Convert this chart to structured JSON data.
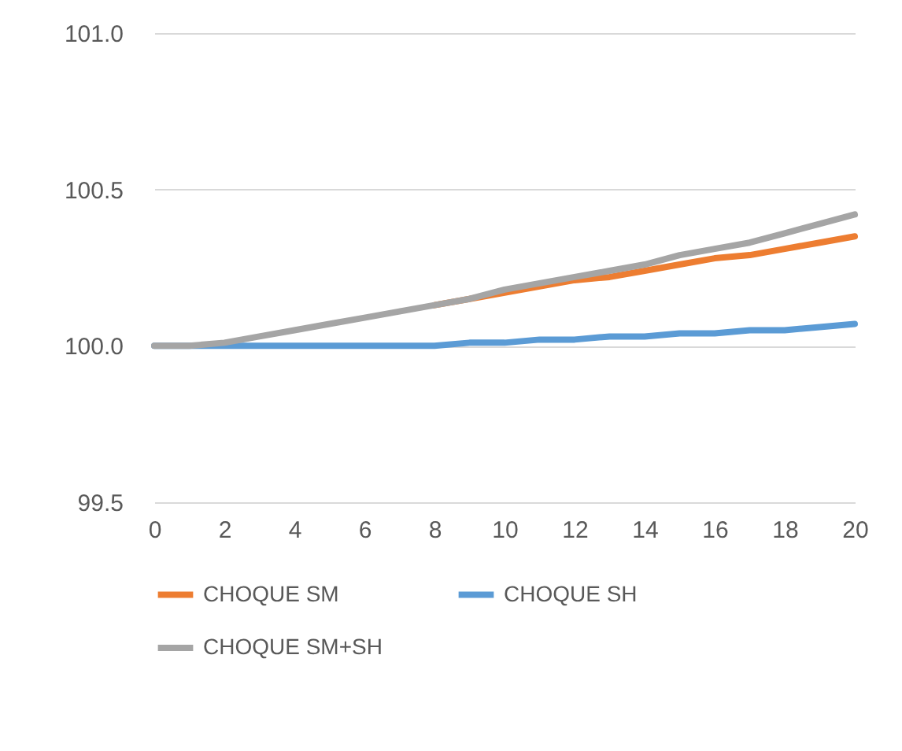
{
  "chart_data": {
    "type": "line",
    "x": [
      0,
      1,
      2,
      3,
      4,
      5,
      6,
      7,
      8,
      9,
      10,
      11,
      12,
      13,
      14,
      15,
      16,
      17,
      18,
      19,
      20
    ],
    "series": [
      {
        "name": "CHOQUE SM",
        "color": "#ed7d31",
        "values": [
          null,
          null,
          null,
          null,
          null,
          null,
          null,
          null,
          100.13,
          100.15,
          100.17,
          100.19,
          100.21,
          100.22,
          100.24,
          100.26,
          100.28,
          100.29,
          100.31,
          100.33,
          100.35
        ]
      },
      {
        "name": "CHOQUE SH",
        "color": "#5b9bd5",
        "values": [
          100,
          100,
          100,
          100,
          100,
          100,
          100,
          100,
          100,
          100.01,
          100.01,
          100.02,
          100.02,
          100.03,
          100.03,
          100.04,
          100.04,
          100.05,
          100.05,
          100.06,
          100.07
        ]
      },
      {
        "name": "CHOQUE SM+SH",
        "color": "#a5a5a5",
        "values": [
          100,
          100,
          100.01,
          100.03,
          100.05,
          100.07,
          100.09,
          100.11,
          100.13,
          100.15,
          100.18,
          100.2,
          100.22,
          100.24,
          100.26,
          100.29,
          100.31,
          100.33,
          100.36,
          100.39,
          100.42
        ]
      }
    ],
    "xlim": [
      0,
      20
    ],
    "xticks": [
      0,
      2,
      4,
      6,
      8,
      10,
      12,
      14,
      16,
      18,
      20
    ],
    "ylim": [
      99.5,
      101.0
    ],
    "yticks": [
      {
        "value": 99.5,
        "label": "99.5"
      },
      {
        "value": 100,
        "label": "100.0"
      },
      {
        "value": 100.5,
        "label": "100.5"
      },
      {
        "value": 101,
        "label": "101.0"
      }
    ],
    "grid": "y",
    "legend": "bottom",
    "marker": "none",
    "line_style": "solid"
  }
}
